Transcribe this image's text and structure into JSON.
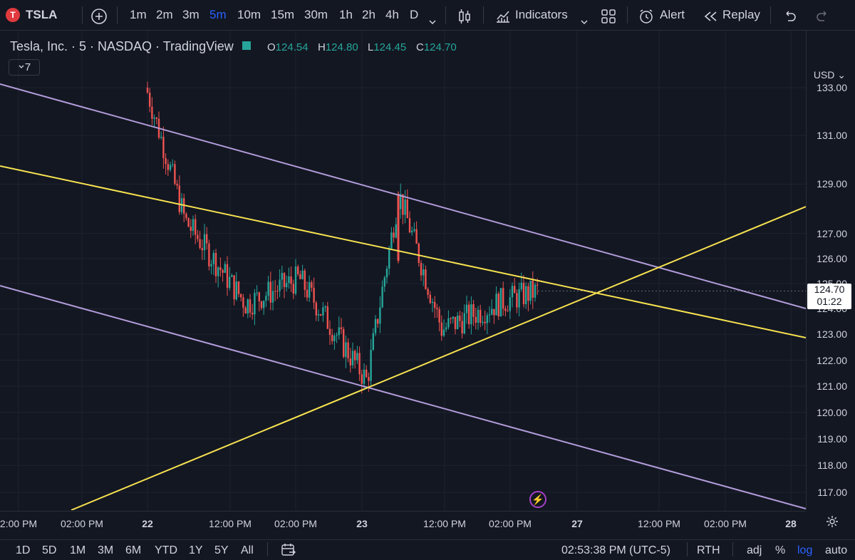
{
  "toolbar": {
    "symbol": "TSLA",
    "add_symbol_icon": "plus-circle-icon",
    "intervals": [
      "1m",
      "2m",
      "3m",
      "5m",
      "10m",
      "15m",
      "30m",
      "1h",
      "2h",
      "4h",
      "D"
    ],
    "active_interval": "5m",
    "indicators_label": "Indicators",
    "alert_label": "Alert",
    "replay_label": "Replay"
  },
  "legend": {
    "title": "Tesla, Inc. · 5 · NASDAQ · TradingView",
    "o_label": "O",
    "o": "124.54",
    "h_label": "H",
    "h": "124.80",
    "l_label": "L",
    "l": "124.45",
    "c_label": "C",
    "c": "124.70",
    "indicator_count": "7"
  },
  "price_axis": {
    "currency": "USD",
    "labels": [
      "133.00",
      "131.00",
      "129.00",
      "127.00",
      "126.00",
      "125.00",
      "124.00",
      "123.00",
      "122.00",
      "121.00",
      "120.00",
      "119.00",
      "118.00",
      "117.00"
    ],
    "last_price": "124.70",
    "countdown": "01:22"
  },
  "time_axis": {
    "labels": [
      "2:00 PM",
      "02:00 PM",
      "22",
      "12:00 PM",
      "02:00 PM",
      "23",
      "12:00 PM",
      "02:00 PM",
      "27",
      "12:00 PM",
      "02:00 PM",
      "28"
    ]
  },
  "bottom_bar": {
    "ranges": [
      "1D",
      "5D",
      "1M",
      "3M",
      "6M",
      "YTD",
      "1Y",
      "5Y",
      "All"
    ],
    "clock": "02:53:38 PM (UTC-5)",
    "session": "RTH",
    "adj": "adj",
    "percent": "%",
    "log": "log",
    "auto": "auto"
  },
  "colors": {
    "background": "#131722",
    "up": "#26a69a",
    "down": "#ef5350",
    "trend_yellow": "#f7e250",
    "channel_purple": "#b39ddb",
    "accent": "#2962ff"
  },
  "chart_data": {
    "type": "candlestick",
    "title": "Tesla, Inc. · 5 · NASDAQ · TradingView",
    "ylim": [
      116.5,
      134.5
    ],
    "y_scale": "log",
    "approx_close_path": [
      {
        "x": "22 late morning",
        "y": 133.0
      },
      {
        "x": "22 12:00 PM",
        "y": 127.5
      },
      {
        "x": "22 early afternoon",
        "y": 124.2
      },
      {
        "x": "22 02:00 PM",
        "y": 125.2
      },
      {
        "x": "23 open",
        "y": 121.2
      },
      {
        "x": "23 spike",
        "y": 128.6
      },
      {
        "x": "23 12:00 PM",
        "y": 123.2
      },
      {
        "x": "23 02:00 PM",
        "y": 124.3
      },
      {
        "x": "23 last",
        "y": 124.7
      }
    ],
    "trendlines": [
      {
        "color": "purple",
        "from": {
          "x": "21",
          "y": 133.4
        },
        "to": {
          "x": "27 afternoon",
          "y": 124.0
        }
      },
      {
        "color": "purple",
        "from": {
          "x": "21",
          "y": 124.9
        },
        "to": {
          "x": "28",
          "y": 116.5
        }
      },
      {
        "color": "yellow",
        "from": {
          "x": "21",
          "y": 129.6
        },
        "to": {
          "x": "28",
          "y": 122.9
        }
      },
      {
        "color": "yellow",
        "from": {
          "x": "22 morning",
          "y": 116.5
        },
        "to": {
          "x": "28",
          "y": 128.0
        }
      }
    ]
  }
}
